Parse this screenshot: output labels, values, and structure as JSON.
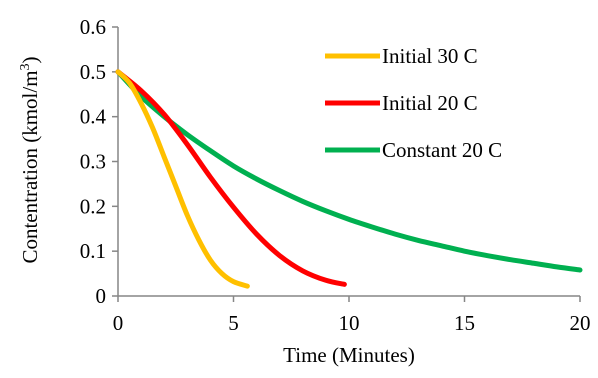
{
  "chart_data": {
    "type": "line",
    "title": "",
    "xlabel": "Time (Minutes)",
    "ylabel_main": "Contentration (kmol/m",
    "ylabel_sup": "3",
    "ylabel_close": ")",
    "xlim": [
      0,
      20
    ],
    "ylim": [
      0,
      0.6
    ],
    "x_ticks": [
      "0",
      "5",
      "10",
      "15",
      "20"
    ],
    "y_ticks": [
      "0",
      "0.1",
      "0.2",
      "0.3",
      "0.4",
      "0.5",
      "0.6"
    ],
    "grid": false,
    "legend_position": "top-right",
    "series": [
      {
        "name": "Initial 30 C",
        "color": "#FFC000",
        "x": [
          0,
          0.5,
          1,
          1.5,
          2,
          2.5,
          3,
          3.5,
          4,
          4.5,
          5,
          5.6
        ],
        "y": [
          0.5,
          0.475,
          0.43,
          0.375,
          0.31,
          0.245,
          0.18,
          0.125,
          0.08,
          0.05,
          0.032,
          0.022
        ]
      },
      {
        "name": "Initial 20 C",
        "color": "#FF0000",
        "x": [
          0,
          1,
          2,
          3,
          4,
          5,
          6,
          7,
          8,
          9,
          9.8
        ],
        "y": [
          0.5,
          0.458,
          0.405,
          0.338,
          0.265,
          0.198,
          0.138,
          0.09,
          0.056,
          0.035,
          0.026
        ]
      },
      {
        "name": "Constant 20 C",
        "color": "#00B050",
        "x": [
          0,
          1,
          2,
          3,
          4,
          5,
          6,
          7,
          8,
          9,
          10,
          11,
          12,
          13,
          14,
          15,
          16,
          17,
          18,
          19,
          20
        ],
        "y": [
          0.5,
          0.445,
          0.4,
          0.36,
          0.324,
          0.29,
          0.261,
          0.235,
          0.211,
          0.19,
          0.171,
          0.154,
          0.138,
          0.124,
          0.112,
          0.1,
          0.09,
          0.081,
          0.073,
          0.065,
          0.058
        ]
      }
    ]
  }
}
